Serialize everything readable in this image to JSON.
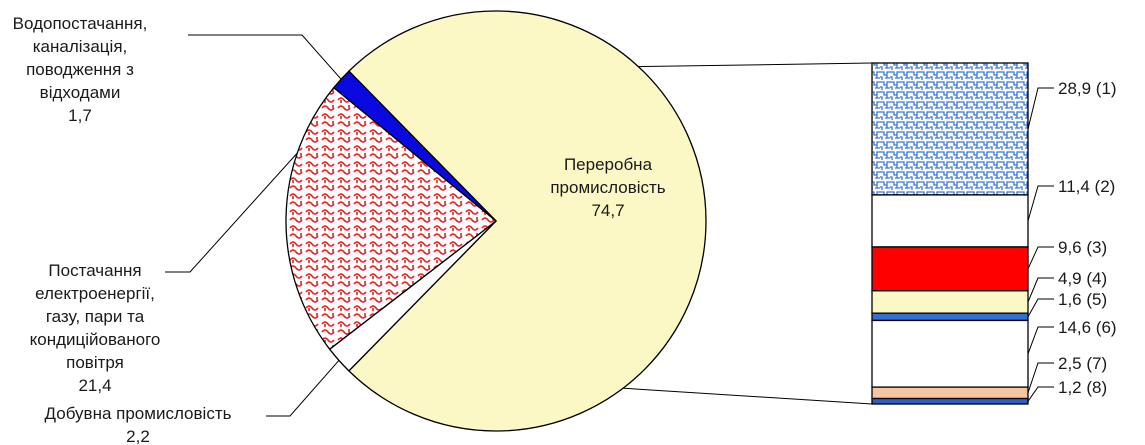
{
  "chart_data": {
    "type": "pie",
    "title": "",
    "pie": {
      "slices": [
        {
          "id": "manufacturing",
          "label_lines": [
            "Переробна",
            "промисловість",
            "74,7"
          ],
          "value": 74.7,
          "color": "#fbf8c5",
          "pattern": "none"
        },
        {
          "id": "mining",
          "label_lines": [
            "Добувна промисловість",
            "2,2"
          ],
          "value": 2.2,
          "color": "#ffffff",
          "pattern": "none"
        },
        {
          "id": "energy",
          "label_lines": [
            "Постачання",
            "електроенергії,",
            "газу, пари та",
            "кондиційованого",
            "повітря",
            "21,4"
          ],
          "value": 21.4,
          "color": "#e8201f",
          "pattern": "red-loops"
        },
        {
          "id": "water",
          "label_lines": [
            "Водопостачання,",
            "каналізація,",
            "поводження з",
            "відходами",
            "1,7"
          ],
          "value": 1.7,
          "color": "#0a0ae0",
          "pattern": "solid"
        }
      ]
    },
    "breakdown": {
      "of": "manufacturing",
      "segments": [
        {
          "label": "28,9 (1)",
          "value": 28.9,
          "color": "#3a78d8",
          "pattern": "blue-maze"
        },
        {
          "label": "11,4 (2)",
          "value": 11.4,
          "color": "#ffffff",
          "pattern": "none"
        },
        {
          "label": "9,6 (3)",
          "value": 9.6,
          "color": "#ff0000",
          "pattern": "none"
        },
        {
          "label": "4,9 (4)",
          "value": 4.9,
          "color": "#fbf8c5",
          "pattern": "none"
        },
        {
          "label": "1,6 (5)",
          "value": 1.6,
          "color": "#2f6fd6",
          "pattern": "none"
        },
        {
          "label": "14,6 (6)",
          "value": 14.6,
          "color": "#ffffff",
          "pattern": "none"
        },
        {
          "label": "2,5 (7)",
          "value": 2.5,
          "color": "#f7c59f",
          "pattern": "none"
        },
        {
          "label": "1,2 (8)",
          "value": 1.2,
          "color": "#2f5fc6",
          "pattern": "none"
        }
      ]
    }
  }
}
